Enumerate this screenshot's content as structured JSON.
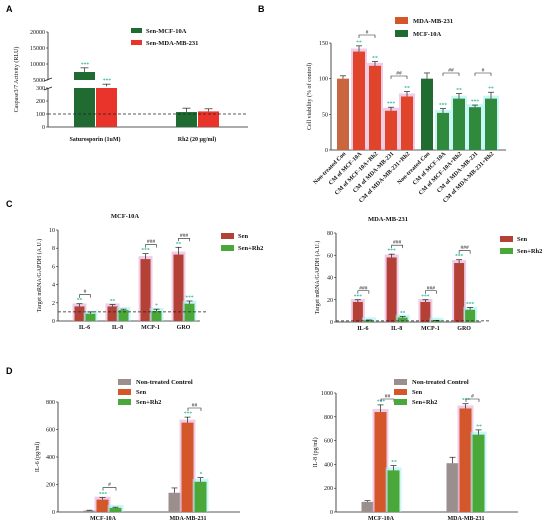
{
  "colors": {
    "teal": "#1fb59a",
    "red": "#e8342a",
    "orange_red": "#d4562b",
    "dark_green": "#1f6b32",
    "grey": "#9a8f8c",
    "brown": "#9a6d54",
    "olive": "#8f7f3f",
    "green": "#6cb33f",
    "pink": "#e3a2d4",
    "cyan": "#9deef0",
    "dark_red": "#b44135",
    "medium_green": "#4aa83b"
  },
  "chart_data": [
    {
      "panel": "A",
      "type": "bar",
      "ylabel": "Caspase3/7 Activity (RLU)",
      "categories": [
        "Saturosporin (1uM)",
        "Rh2 (20 μg/ml)"
      ],
      "yticks_upper": [
        "20000",
        "15000",
        "10000",
        "5000"
      ],
      "yticks_lower": [
        "300",
        "200",
        "100",
        "0"
      ],
      "series": [
        {
          "name": "Sen-MCF-10A",
          "values": [
            7500,
            115
          ],
          "errors": [
            1300,
            30
          ],
          "stars": [
            "***",
            ""
          ]
        },
        {
          "name": "Sen-MDA-MB-231",
          "values": [
            3000,
            120
          ],
          "errors": [
            700,
            20
          ],
          "stars": [
            "***",
            ""
          ]
        }
      ],
      "dashed_line": 100
    },
    {
      "panel": "B",
      "type": "bar",
      "ylabel": "Cell viability (% of control)",
      "ylim": [
        0,
        150
      ],
      "yticks": [
        "150",
        "100",
        "50",
        "0"
      ],
      "groups": [
        {
          "name": "MDA-MB-231",
          "categories": [
            "Non-treated Con",
            "CM of MCF-10A",
            "CM of MCF-10A+Rh2",
            "CM of MDA-MB-231",
            "CM of MDA-MB-231+Rh2"
          ],
          "values": [
            100,
            138,
            118,
            55,
            75
          ],
          "errors": [
            4,
            8,
            6,
            5,
            7
          ],
          "stars": [
            "",
            "**",
            "**",
            "***",
            "**"
          ]
        },
        {
          "name": "MCF-10A",
          "categories": [
            "Non-treated Con",
            "CM of MCF-10A",
            "CM of MCF-10A+Rh2",
            "CM of MDA-MB-231",
            "CM of MDA-MB-231+Rh2"
          ],
          "values": [
            100,
            52,
            72,
            60,
            72
          ],
          "errors": [
            8,
            6,
            7,
            3,
            9
          ],
          "stars": [
            "",
            "***",
            "**",
            "***",
            "**"
          ]
        }
      ],
      "significance": [
        "#",
        "##",
        "##",
        "#"
      ]
    },
    {
      "panel": "C",
      "title": "MCF-10A",
      "type": "bar",
      "ylabel": "Target mRNA/GAPDH (A.U.)",
      "ylim": [
        0,
        10
      ],
      "yticks": [
        "10",
        "8",
        "6",
        "4",
        "2",
        "0"
      ],
      "categories": [
        "IL-6",
        "IL-8",
        "MCP-1",
        "GRO"
      ],
      "series": [
        {
          "name": "Sen",
          "values": [
            1.6,
            1.6,
            6.8,
            7.3
          ],
          "errors": [
            0.3,
            0.2,
            0.6,
            0.8
          ],
          "stars": [
            "**",
            "**",
            "***",
            "**"
          ]
        },
        {
          "name": "Sen+Rh2",
          "values": [
            0.8,
            1.2,
            1.1,
            1.9
          ],
          "errors": [
            0.2,
            0.1,
            0.2,
            0.3
          ],
          "stars": [
            "",
            "",
            "*",
            "***"
          ]
        }
      ],
      "significance": [
        "#",
        "",
        "###",
        "###"
      ],
      "dashed_line": 1
    },
    {
      "panel": "C2",
      "title": "MDA-MB-231",
      "type": "bar",
      "ylabel": "Target mRNA/GAPDH (A.U.)",
      "ylim": [
        0,
        80
      ],
      "yticks": [
        "80",
        "60",
        "40",
        "20",
        "0"
      ],
      "categories": [
        "IL-6",
        "IL-8",
        "MCP-1",
        "GRO"
      ],
      "series": [
        {
          "name": "Sen",
          "values": [
            18,
            58,
            18,
            53
          ],
          "errors": [
            2,
            3,
            2,
            3
          ],
          "stars": [
            "***",
            "***",
            "***",
            "***"
          ]
        },
        {
          "name": "Sen+Rh2",
          "values": [
            1.5,
            4,
            1.2,
            11
          ],
          "errors": [
            0.3,
            1,
            0.3,
            2
          ],
          "stars": [
            "",
            "**",
            "",
            "***"
          ]
        }
      ],
      "significance": [
        "###",
        "###",
        "###",
        "###"
      ],
      "dashed_line": 1
    },
    {
      "panel": "D",
      "type": "bar",
      "ylabel": "IL-6 (pg/ml)",
      "ylim": [
        0,
        800
      ],
      "yticks": [
        "800",
        "600",
        "400",
        "200",
        "0"
      ],
      "categories": [
        "MCF-10A",
        "MDA-MB-231"
      ],
      "series": [
        {
          "name": "Non-treated Control",
          "values": [
            10,
            140
          ],
          "errors": [
            3,
            35
          ],
          "stars": [
            "",
            ""
          ]
        },
        {
          "name": "Sen",
          "values": [
            90,
            650
          ],
          "errors": [
            15,
            40
          ],
          "stars": [
            "***",
            "***"
          ]
        },
        {
          "name": "Sen+Rh2",
          "values": [
            30,
            220
          ],
          "errors": [
            5,
            30
          ],
          "stars": [
            "",
            "*"
          ]
        }
      ],
      "significance": [
        "#",
        "##"
      ]
    },
    {
      "panel": "D2",
      "type": "bar",
      "ylabel": "IL-8 (pg/ml)",
      "ylim": [
        0,
        1000
      ],
      "yticks": [
        "1000",
        "800",
        "600",
        "400",
        "200",
        "0"
      ],
      "categories": [
        "MCF-10A",
        "MDA-MB-231"
      ],
      "series": [
        {
          "name": "Non-treated Control",
          "values": [
            85,
            410
          ],
          "errors": [
            10,
            50
          ],
          "stars": [
            "",
            ""
          ]
        },
        {
          "name": "Sen",
          "values": [
            840,
            870
          ],
          "errors": [
            60,
            40
          ],
          "stars": [
            "***",
            "***"
          ]
        },
        {
          "name": "Sen+Rh2",
          "values": [
            350,
            650
          ],
          "errors": [
            40,
            40
          ],
          "stars": [
            "**",
            "**"
          ]
        }
      ],
      "significance": [
        "##",
        "#"
      ]
    }
  ],
  "labels": {
    "A": "A",
    "B": "B",
    "C": "C",
    "D": "D"
  }
}
